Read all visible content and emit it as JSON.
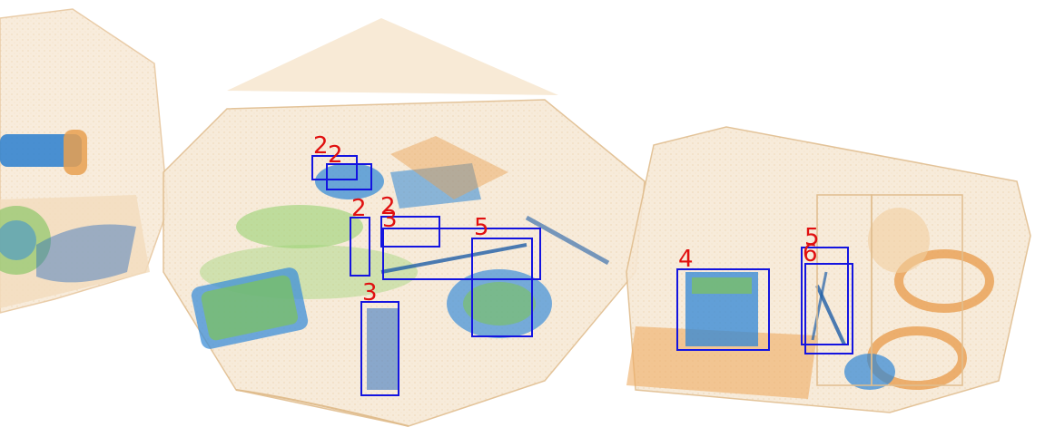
{
  "colors": {
    "box": "#1414e0",
    "label": "#e01010",
    "organic": "#e8b77a",
    "mixed": "#6cc04a",
    "inorganic": "#2f86d6"
  },
  "detections": [
    {
      "label": "2"
    },
    {
      "label": "2"
    },
    {
      "label": "2"
    },
    {
      "label": "2"
    },
    {
      "label": "3"
    },
    {
      "label": "5"
    },
    {
      "label": "3"
    },
    {
      "label": "4"
    },
    {
      "label": "5"
    },
    {
      "label": "6"
    }
  ]
}
